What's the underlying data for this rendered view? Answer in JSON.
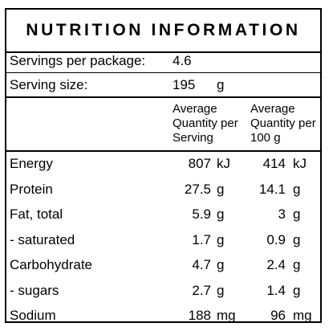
{
  "title": "NUTRITION INFORMATION",
  "servings_label": "Servings per package:",
  "servings_value": "4.6",
  "serving_size_label": "Serving size:",
  "serving_size_value": "195",
  "serving_size_unit": "g",
  "col_serving": "Average\nQuantity per\nServing",
  "col_100g": "Average\nQuantity per\n100 g",
  "rows": [
    {
      "name": "Energy",
      "serving": "807",
      "serving_unit": "kJ",
      "per100": "414",
      "per100_unit": "kJ"
    },
    {
      "name": "Protein",
      "serving": "27.5",
      "serving_unit": "g",
      "per100": "14.1",
      "per100_unit": "g"
    },
    {
      "name": "Fat, total",
      "serving": "5.9",
      "serving_unit": "g",
      "per100": "3",
      "per100_unit": "g"
    },
    {
      "name": "- saturated",
      "serving": "1.7",
      "serving_unit": "g",
      "per100": "0.9",
      "per100_unit": "g"
    },
    {
      "name": "Carbohydrate",
      "serving": "4.7",
      "serving_unit": "g",
      "per100": "2.4",
      "per100_unit": "g"
    },
    {
      "name": "- sugars",
      "serving": "2.7",
      "serving_unit": "g",
      "per100": "1.4",
      "per100_unit": "g"
    },
    {
      "name": "Sodium",
      "serving": "188",
      "serving_unit": "mg",
      "per100": "96",
      "per100_unit": "mg"
    }
  ]
}
